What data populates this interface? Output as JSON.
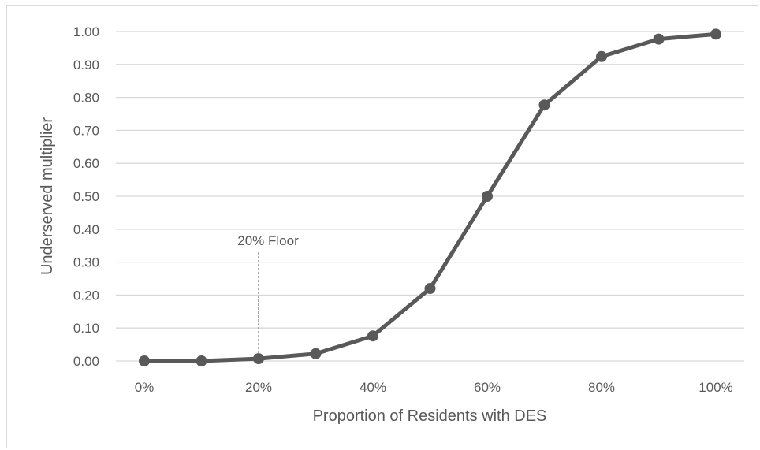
{
  "chart_data": {
    "type": "line",
    "xlabel": "Proportion of Residents with DES",
    "ylabel": "Underserved multiplier",
    "x": [
      0,
      10,
      20,
      30,
      40,
      50,
      60,
      70,
      80,
      90,
      100
    ],
    "x_tick_labels": [
      "0%",
      "20%",
      "40%",
      "60%",
      "80%",
      "100%"
    ],
    "x_tick_values": [
      0,
      20,
      40,
      60,
      80,
      100
    ],
    "xlim": [
      0,
      100
    ],
    "y_tick_labels": [
      "0.00",
      "0.10",
      "0.20",
      "0.30",
      "0.40",
      "0.50",
      "0.60",
      "0.70",
      "0.80",
      "0.90",
      "1.00"
    ],
    "ylim": [
      0,
      1
    ],
    "grid": true,
    "series": [
      {
        "values": [
          0.0,
          0.0,
          0.007,
          0.022,
          0.076,
          0.22,
          0.5,
          0.777,
          0.924,
          0.977,
          0.992
        ]
      }
    ],
    "annotation": {
      "text": "20% Floor",
      "x": 20
    },
    "colors": {
      "line": "#595959",
      "grid": "#d9d9d9",
      "text": "#595959"
    }
  }
}
